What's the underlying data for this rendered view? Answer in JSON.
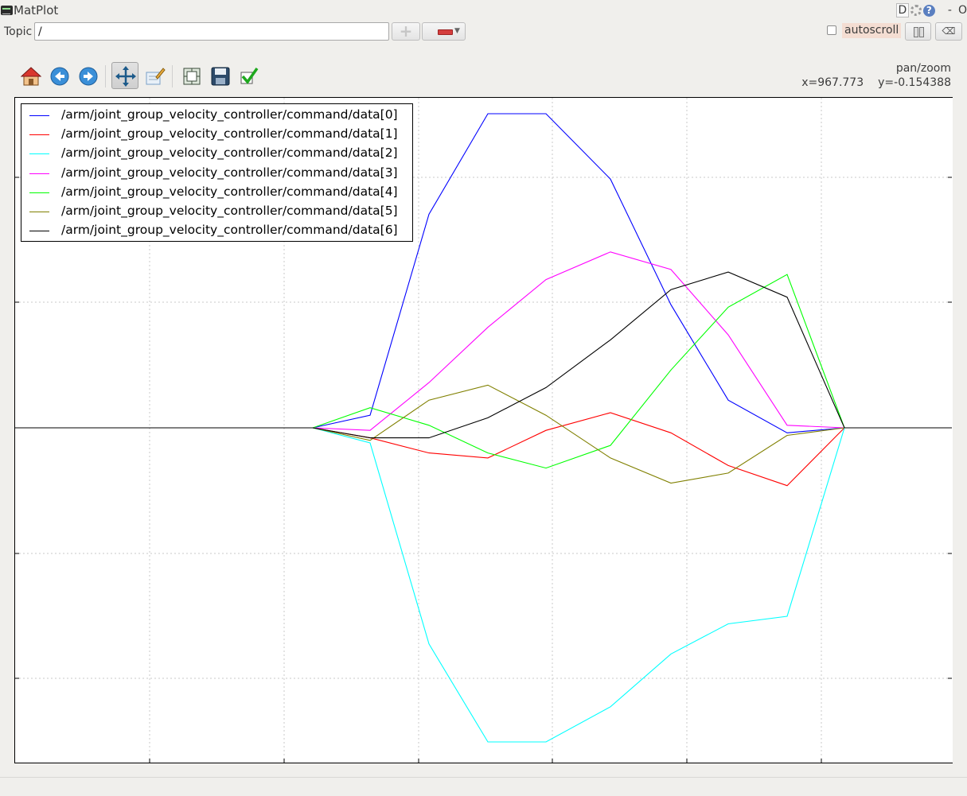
{
  "window": {
    "title": "MatPlot",
    "d_label": "D",
    "help_label": "?",
    "minimize_label": "-",
    "close_label": "O"
  },
  "topic": {
    "label": "Topic",
    "value": "/",
    "add_icon": "plus-icon",
    "remove_icon": "minus-dropdown-icon",
    "autoscroll_label": "autoscroll",
    "autoscroll_checked": false,
    "pause_icon": "pause-icon",
    "clear_icon": "clear-icon"
  },
  "toolbar": {
    "buttons": [
      "home-icon",
      "back-icon",
      "forward-icon",
      "pan-zoom-icon",
      "edit-axis-icon",
      "subplot-config-icon",
      "save-icon",
      "check-icon"
    ],
    "active": "pan-zoom-icon"
  },
  "status": {
    "mode": "pan/zoom",
    "x": "x=967.773",
    "y": "y=-0.154388"
  },
  "chart_data": {
    "type": "line",
    "title": "",
    "xlabel": "",
    "ylabel": "",
    "grid": true,
    "legend_position": "top-left",
    "ylim": [
      -1.35,
      1.3
    ],
    "x": [
      0,
      1,
      2,
      3,
      4,
      5,
      6,
      7,
      8,
      9,
      10,
      11,
      12,
      13,
      14,
      15
    ],
    "series": [
      {
        "name": "/arm/joint_group_velocity_controller/command/data[0]",
        "color": "#0000ff",
        "values": [
          0,
          0,
          0,
          0,
          0.05,
          0.85,
          1.25,
          1.25,
          0.99,
          0.49,
          0.11,
          -0.02,
          0,
          0,
          0,
          0
        ]
      },
      {
        "name": "/arm/joint_group_velocity_controller/command/data[1]",
        "color": "#ff0000",
        "values": [
          0,
          0,
          0,
          0,
          -0.04,
          -0.1,
          -0.12,
          -0.01,
          0.06,
          -0.02,
          -0.15,
          -0.23,
          0,
          0,
          0,
          0
        ]
      },
      {
        "name": "/arm/joint_group_velocity_controller/command/data[2]",
        "color": "#00ffff",
        "values": [
          0,
          0,
          0,
          0,
          -0.06,
          -0.86,
          -1.25,
          -1.25,
          -1.11,
          -0.9,
          -0.78,
          -0.75,
          0,
          0,
          0,
          0
        ]
      },
      {
        "name": "/arm/joint_group_velocity_controller/command/data[3]",
        "color": "#ff00ff",
        "values": [
          0,
          0,
          0,
          0,
          -0.01,
          0.18,
          0.4,
          0.59,
          0.7,
          0.63,
          0.37,
          0.01,
          0,
          0,
          0,
          0
        ]
      },
      {
        "name": "/arm/joint_group_velocity_controller/command/data[4]",
        "color": "#00ff00",
        "values": [
          0,
          0,
          0,
          0,
          0.08,
          0.01,
          -0.1,
          -0.16,
          -0.07,
          0.23,
          0.48,
          0.61,
          0,
          0,
          0,
          0
        ]
      },
      {
        "name": "/arm/joint_group_velocity_controller/command/data[5]",
        "color": "#808000",
        "values": [
          0,
          0,
          0,
          0,
          -0.05,
          0.11,
          0.17,
          0.05,
          -0.12,
          -0.22,
          -0.18,
          -0.03,
          0,
          0,
          0,
          0
        ]
      },
      {
        "name": "/arm/joint_group_velocity_controller/command/data[6]",
        "color": "#000000",
        "values": [
          0,
          0,
          0,
          0,
          -0.04,
          -0.04,
          0.04,
          0.16,
          0.35,
          0.55,
          0.62,
          0.52,
          0,
          0,
          0,
          0
        ]
      }
    ]
  }
}
